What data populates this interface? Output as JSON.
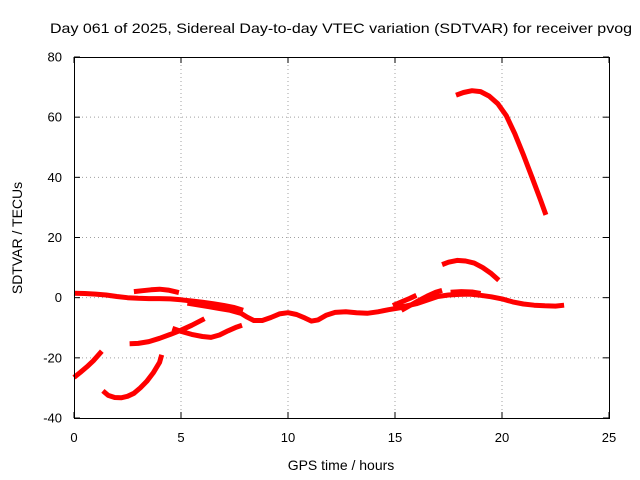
{
  "chart_data": {
    "type": "line",
    "title": "Day 061 of 2025, Sidereal Day-to-day VTEC variation (SDTVAR) for receiver pvog",
    "xlabel": "GPS time / hours",
    "ylabel": "SDTVAR / TECUs",
    "xlim": [
      0,
      25
    ],
    "ylim": [
      -40,
      80
    ],
    "xticks": [
      0,
      5,
      10,
      15,
      20,
      25
    ],
    "yticks": [
      -40,
      -20,
      0,
      20,
      40,
      60,
      80
    ],
    "grid": true,
    "colors": {
      "grid": "#a0a0a0",
      "frame": "#000000",
      "background": "#ffffff"
    },
    "series": [
      {
        "color": "#ff0000",
        "segments": [
          [
            [
              0,
              -26.5
            ],
            [
              0.3,
              -24.8
            ],
            [
              0.6,
              -23.0
            ],
            [
              0.9,
              -21.0
            ],
            [
              1.3,
              -17.8
            ]
          ],
          [
            [
              1.35,
              -31.0
            ],
            [
              1.6,
              -32.5
            ],
            [
              1.9,
              -33.2
            ],
            [
              2.2,
              -33.3
            ],
            [
              2.5,
              -32.8
            ],
            [
              2.8,
              -31.8
            ],
            [
              3.1,
              -30.0
            ],
            [
              3.4,
              -27.8
            ],
            [
              3.7,
              -25.0
            ],
            [
              4.0,
              -21.5
            ],
            [
              4.1,
              -19.0
            ]
          ],
          [
            [
              2.6,
              -15.3
            ],
            [
              3.0,
              -15.2
            ],
            [
              3.5,
              -14.6
            ],
            [
              4.0,
              -13.5
            ],
            [
              4.5,
              -12.2
            ],
            [
              5.0,
              -10.8
            ],
            [
              5.5,
              -9.2
            ],
            [
              6.1,
              -7.0
            ]
          ],
          [
            [
              4.6,
              -10.2
            ],
            [
              5.0,
              -11.2
            ],
            [
              5.5,
              -12.2
            ],
            [
              6.0,
              -12.9
            ],
            [
              6.4,
              -13.2
            ],
            [
              6.8,
              -12.4
            ],
            [
              7.2,
              -11.0
            ],
            [
              7.6,
              -9.8
            ],
            [
              7.85,
              -9.2
            ]
          ],
          [
            [
              0,
              1.5
            ],
            [
              0.5,
              1.4
            ],
            [
              1.0,
              1.2
            ],
            [
              1.5,
              0.9
            ],
            [
              2.0,
              0.4
            ],
            [
              2.5,
              0.0
            ],
            [
              3.0,
              -0.2
            ],
            [
              3.5,
              -0.3
            ],
            [
              4.0,
              -0.3
            ],
            [
              4.5,
              -0.4
            ],
            [
              5.0,
              -0.7
            ],
            [
              5.5,
              -1.1
            ],
            [
              6.0,
              -1.5
            ],
            [
              6.5,
              -2.0
            ],
            [
              7.0,
              -2.6
            ],
            [
              7.5,
              -3.3
            ],
            [
              7.9,
              -4.2
            ]
          ],
          [
            [
              2.8,
              2.0
            ],
            [
              3.2,
              2.3
            ],
            [
              3.6,
              2.6
            ],
            [
              4.0,
              2.8
            ],
            [
              4.4,
              2.5
            ],
            [
              4.9,
              1.7
            ]
          ],
          [
            [
              5.3,
              -1.8
            ],
            [
              5.8,
              -2.4
            ],
            [
              6.3,
              -3.0
            ],
            [
              6.8,
              -3.6
            ],
            [
              7.3,
              -4.2
            ],
            [
              7.8,
              -5.2
            ],
            [
              8.1,
              -6.5
            ],
            [
              8.4,
              -7.6
            ],
            [
              8.8,
              -7.6
            ],
            [
              9.2,
              -6.6
            ],
            [
              9.6,
              -5.4
            ],
            [
              10.0,
              -5.0
            ],
            [
              10.4,
              -5.6
            ],
            [
              10.8,
              -6.8
            ],
            [
              11.1,
              -7.8
            ],
            [
              11.4,
              -7.4
            ],
            [
              11.8,
              -5.8
            ],
            [
              12.2,
              -4.9
            ],
            [
              12.7,
              -4.7
            ],
            [
              13.2,
              -5.0
            ],
            [
              13.7,
              -5.2
            ],
            [
              14.2,
              -4.7
            ],
            [
              14.7,
              -4.0
            ],
            [
              15.2,
              -3.4
            ],
            [
              15.6,
              -3.0
            ]
          ],
          [
            [
              14.9,
              -2.6
            ],
            [
              15.3,
              -1.4
            ],
            [
              15.7,
              -0.2
            ],
            [
              16.0,
              0.8
            ]
          ],
          [
            [
              15.3,
              -4.2
            ],
            [
              15.7,
              -2.6
            ],
            [
              16.1,
              -1.0
            ],
            [
              16.5,
              0.5
            ],
            [
              16.9,
              1.8
            ],
            [
              17.2,
              2.4
            ]
          ],
          [
            [
              15.0,
              -3.2
            ],
            [
              15.5,
              -2.8
            ],
            [
              16.0,
              -2.0
            ],
            [
              16.5,
              -0.8
            ],
            [
              17.0,
              0.4
            ],
            [
              17.5,
              0.9
            ],
            [
              18.0,
              1.1
            ],
            [
              18.5,
              1.2
            ],
            [
              19.0,
              0.8
            ],
            [
              19.5,
              0.3
            ],
            [
              20.0,
              -0.4
            ],
            [
              20.5,
              -1.4
            ],
            [
              21.0,
              -2.1
            ],
            [
              21.5,
              -2.5
            ],
            [
              22.0,
              -2.7
            ],
            [
              22.5,
              -2.8
            ],
            [
              22.9,
              -2.5
            ]
          ],
          [
            [
              17.6,
              1.8
            ],
            [
              18.1,
              2.0
            ],
            [
              18.6,
              1.9
            ],
            [
              19.0,
              1.4
            ]
          ],
          [
            [
              17.2,
              11.0
            ],
            [
              17.5,
              11.8
            ],
            [
              17.9,
              12.4
            ],
            [
              18.3,
              12.2
            ],
            [
              18.7,
              11.5
            ],
            [
              19.1,
              10.0
            ],
            [
              19.5,
              8.0
            ],
            [
              19.85,
              5.8
            ]
          ],
          [
            [
              17.85,
              67.3
            ],
            [
              18.2,
              68.2
            ],
            [
              18.6,
              68.8
            ],
            [
              19.0,
              68.5
            ],
            [
              19.4,
              67.0
            ],
            [
              19.8,
              64.5
            ],
            [
              20.2,
              60.5
            ],
            [
              20.6,
              54.5
            ],
            [
              21.0,
              47.5
            ],
            [
              21.4,
              40.0
            ],
            [
              21.8,
              32.5
            ],
            [
              22.05,
              27.5
            ]
          ]
        ]
      }
    ]
  }
}
